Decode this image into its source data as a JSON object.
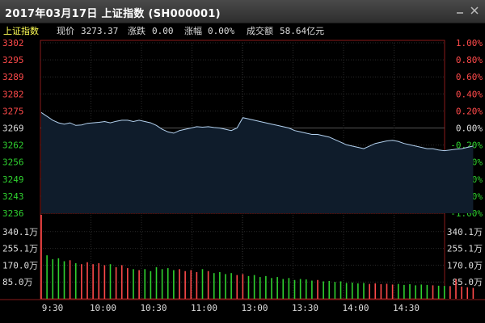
{
  "window": {
    "title": "2017年03月17日 上证指数 (SH000001)"
  },
  "info": {
    "index_name": "上证指数",
    "price_label": "现价",
    "price_value": "3273.37",
    "change_label": "涨跌",
    "change_value": "0.00",
    "pct_label": "涨幅",
    "pct_value": "0.00%",
    "turnover_label": "成交额",
    "turnover_value": "58.64亿元"
  },
  "colors": {
    "up": "#ff4a4a",
    "down": "#2fd12f",
    "flat": "#dddddd",
    "price_line": "#b4d2f0",
    "grid": "#2a2a2a",
    "axis": "#8a1a1a"
  },
  "chart_data": {
    "type": "line",
    "price_axis": {
      "left_ticks": [
        "3302",
        "3295",
        "3289",
        "3282",
        "3275",
        "3269",
        "3262",
        "3256",
        "3249",
        "3243",
        "3236"
      ],
      "right_ticks": [
        "1.00%",
        "0.80%",
        "0.60%",
        "0.40%",
        "0.20%",
        "0.00%",
        "-0.20%",
        "-0.40%",
        "-0.60%",
        "-0.80%",
        "-1.00%"
      ],
      "ylim": [
        3236,
        3302
      ],
      "reference": 3269
    },
    "time_axis": {
      "labels": [
        "9:30",
        "10:00",
        "10:30",
        "11:00",
        "13:00",
        "13:30",
        "14:00",
        "14:30"
      ],
      "session_minutes": 240
    },
    "volume_axis": {
      "ticks": [
        "340.1万",
        "255.1万",
        "170.0万",
        "85.0万"
      ],
      "ylim": [
        0,
        425
      ]
    },
    "series": [
      {
        "values": [
          3275,
          3273.5,
          3272,
          3271,
          3270.5,
          3271,
          3270,
          3270.2,
          3270.8,
          3271,
          3271.2,
          3271.5,
          3271,
          3271.6,
          3272,
          3272,
          3271.5,
          3272,
          3271.5,
          3271,
          3270,
          3268.5,
          3267.5,
          3267,
          3268,
          3268.5,
          3269,
          3269.5,
          3269.3,
          3269.5,
          3269.2,
          3269,
          3268.5,
          3268,
          3269,
          3273,
          3272.5,
          3272,
          3271.5,
          3271,
          3270.5,
          3270,
          3269.5,
          3269,
          3268,
          3267.5,
          3267,
          3266.5,
          3266.5,
          3266,
          3265.5,
          3264.5,
          3263.5,
          3262.5,
          3262,
          3261.5,
          3261,
          3262,
          3263,
          3263.5,
          3264,
          3264.2,
          3263.8,
          3263,
          3262.5,
          3262,
          3261.5,
          3261,
          3261,
          3260.5,
          3260.2,
          3260.5,
          3260.8,
          3261,
          3261.5,
          3262
        ]
      },
      {
        "values": [
          425,
          220,
          200,
          205,
          190,
          195,
          180,
          175,
          185,
          175,
          180,
          170,
          175,
          160,
          170,
          155,
          150,
          145,
          150,
          140,
          160,
          150,
          155,
          145,
          150,
          140,
          145,
          135,
          150,
          140,
          130,
          135,
          125,
          130,
          120,
          125,
          115,
          120,
          110,
          115,
          105,
          110,
          100,
          105,
          95,
          100,
          98,
          92,
          95,
          88,
          90,
          85,
          88,
          80,
          82,
          78,
          80,
          75,
          78,
          74,
          76,
          72,
          75,
          70,
          74,
          68,
          72,
          70,
          68,
          66,
          65,
          64,
          100,
          62,
          58,
          55
        ]
      }
    ]
  }
}
